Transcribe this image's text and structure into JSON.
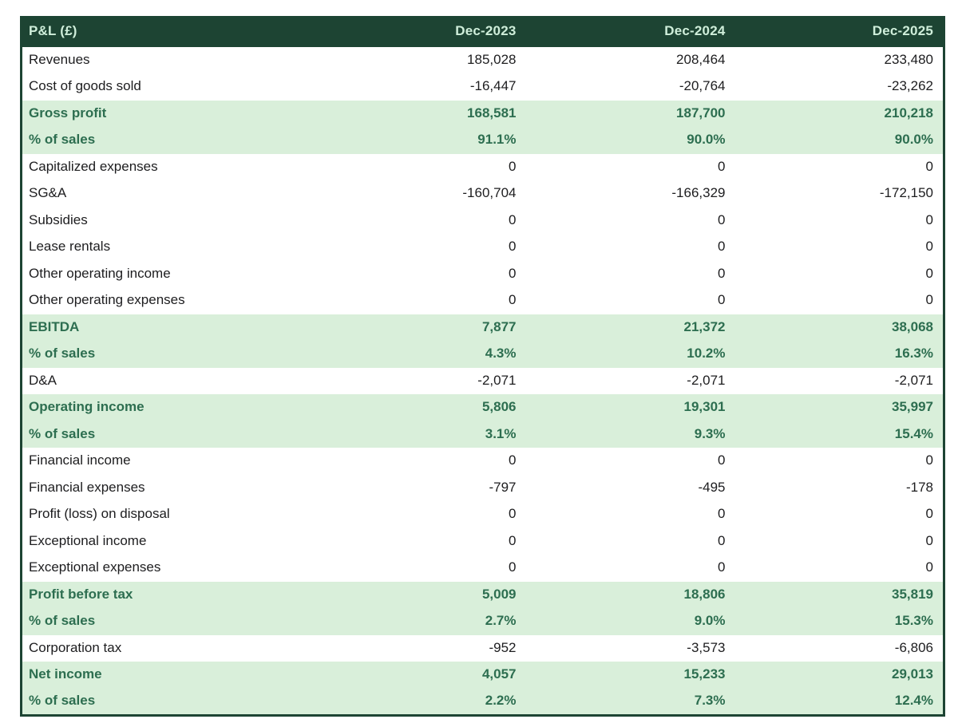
{
  "table": {
    "title": "P&L (£)",
    "columns": [
      "Dec-2023",
      "Dec-2024",
      "Dec-2025"
    ],
    "rows": [
      {
        "label": "Revenues",
        "values": [
          "185,028",
          "208,464",
          "233,480"
        ],
        "highlight": false
      },
      {
        "label": "Cost of goods sold",
        "values": [
          "-16,447",
          "-20,764",
          "-23,262"
        ],
        "highlight": false
      },
      {
        "label": "Gross profit",
        "values": [
          "168,581",
          "187,700",
          "210,218"
        ],
        "highlight": true
      },
      {
        "label": "% of sales",
        "values": [
          "91.1%",
          "90.0%",
          "90.0%"
        ],
        "highlight": true
      },
      {
        "label": "Capitalized expenses",
        "values": [
          "0",
          "0",
          "0"
        ],
        "highlight": false
      },
      {
        "label": "SG&A",
        "values": [
          "-160,704",
          "-166,329",
          "-172,150"
        ],
        "highlight": false
      },
      {
        "label": "Subsidies",
        "values": [
          "0",
          "0",
          "0"
        ],
        "highlight": false
      },
      {
        "label": "Lease rentals",
        "values": [
          "0",
          "0",
          "0"
        ],
        "highlight": false
      },
      {
        "label": "Other operating income",
        "values": [
          "0",
          "0",
          "0"
        ],
        "highlight": false
      },
      {
        "label": "Other operating expenses",
        "values": [
          "0",
          "0",
          "0"
        ],
        "highlight": false
      },
      {
        "label": "EBITDA",
        "values": [
          "7,877",
          "21,372",
          "38,068"
        ],
        "highlight": true
      },
      {
        "label": "% of sales",
        "values": [
          "4.3%",
          "10.2%",
          "16.3%"
        ],
        "highlight": true
      },
      {
        "label": "D&A",
        "values": [
          "-2,071",
          "-2,071",
          "-2,071"
        ],
        "highlight": false
      },
      {
        "label": "Operating income",
        "values": [
          "5,806",
          "19,301",
          "35,997"
        ],
        "highlight": true
      },
      {
        "label": "% of sales",
        "values": [
          "3.1%",
          "9.3%",
          "15.4%"
        ],
        "highlight": true
      },
      {
        "label": "Financial income",
        "values": [
          "0",
          "0",
          "0"
        ],
        "highlight": false
      },
      {
        "label": "Financial expenses",
        "values": [
          "-797",
          "-495",
          "-178"
        ],
        "highlight": false
      },
      {
        "label": "Profit (loss) on disposal",
        "values": [
          "0",
          "0",
          "0"
        ],
        "highlight": false
      },
      {
        "label": "Exceptional income",
        "values": [
          "0",
          "0",
          "0"
        ],
        "highlight": false
      },
      {
        "label": "Exceptional expenses",
        "values": [
          "0",
          "0",
          "0"
        ],
        "highlight": false
      },
      {
        "label": "Profit before tax",
        "values": [
          "5,009",
          "18,806",
          "35,819"
        ],
        "highlight": true
      },
      {
        "label": "% of sales",
        "values": [
          "2.7%",
          "9.0%",
          "15.3%"
        ],
        "highlight": true
      },
      {
        "label": "Corporation tax",
        "values": [
          "-952",
          "-3,573",
          "-6,806"
        ],
        "highlight": false
      },
      {
        "label": "Net income",
        "values": [
          "4,057",
          "15,233",
          "29,013"
        ],
        "highlight": true
      },
      {
        "label": "% of sales",
        "values": [
          "2.2%",
          "7.3%",
          "12.4%"
        ],
        "highlight": true
      }
    ],
    "colors": {
      "header_bg": "#1d4433",
      "header_text": "#cfeeda",
      "highlight_bg": "#d9efda",
      "highlight_text": "#2d6e50",
      "body_text": "#1d1d1f",
      "table_border": "#1d4433"
    }
  }
}
